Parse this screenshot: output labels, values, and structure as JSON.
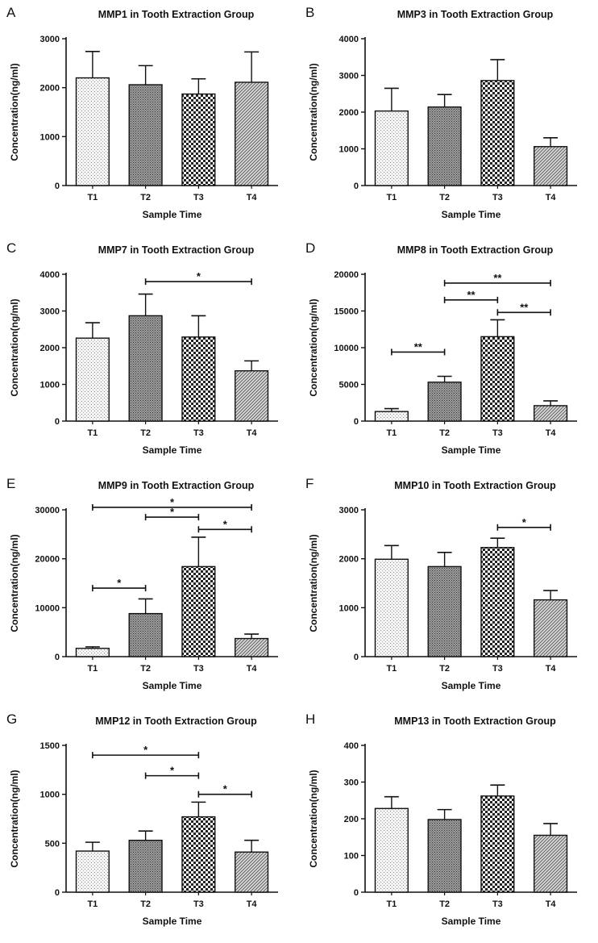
{
  "chart_data": [
    {
      "panel": "A",
      "type": "bar",
      "title": "MMP1 in Tooth Extraction Group",
      "xlabel": "Sample Time",
      "ylabel": "Concentration(ng/ml)",
      "categories": [
        "T1",
        "T2",
        "T3",
        "T4"
      ],
      "values": [
        2200,
        2060,
        1870,
        2110
      ],
      "errors": [
        540,
        390,
        310,
        620
      ],
      "ylim": [
        0,
        3000
      ],
      "yticks": [
        0,
        1000,
        2000,
        3000
      ],
      "patterns": [
        "dots",
        "dense",
        "checker",
        "diag"
      ],
      "significance": []
    },
    {
      "panel": "B",
      "type": "bar",
      "title": "MMP3 in Tooth Extraction Group",
      "xlabel": "Sample Time",
      "ylabel": "Concentration(ng/ml)",
      "categories": [
        "T1",
        "T2",
        "T3",
        "T4"
      ],
      "values": [
        2030,
        2140,
        2860,
        1060
      ],
      "errors": [
        620,
        340,
        570,
        240
      ],
      "ylim": [
        0,
        4000
      ],
      "yticks": [
        0,
        1000,
        2000,
        3000,
        4000
      ],
      "patterns": [
        "dots",
        "dense",
        "checker",
        "diag"
      ],
      "significance": []
    },
    {
      "panel": "C",
      "type": "bar",
      "title": "MMP7 in Tooth Extraction Group",
      "xlabel": "Sample Time",
      "ylabel": "Concentration(ng/ml)",
      "categories": [
        "T1",
        "T2",
        "T3",
        "T4"
      ],
      "values": [
        2260,
        2870,
        2290,
        1370
      ],
      "errors": [
        420,
        590,
        580,
        270
      ],
      "ylim": [
        0,
        4000
      ],
      "yticks": [
        0,
        1000,
        2000,
        3000,
        4000
      ],
      "patterns": [
        "dots",
        "dense",
        "checker",
        "diag"
      ],
      "significance": [
        {
          "from": 1,
          "to": 3,
          "y": 3800,
          "label": "*"
        }
      ]
    },
    {
      "panel": "D",
      "type": "bar",
      "title": "MMP8 in Tooth Extraction Group",
      "xlabel": "Sample Time",
      "ylabel": "Concentration(ng/ml)",
      "categories": [
        "T1",
        "T2",
        "T3",
        "T4"
      ],
      "values": [
        1300,
        5300,
        11500,
        2100
      ],
      "errors": [
        400,
        800,
        2300,
        650
      ],
      "ylim": [
        0,
        20000
      ],
      "yticks": [
        0,
        5000,
        10000,
        15000,
        20000
      ],
      "patterns": [
        "dots",
        "dense",
        "checker",
        "diag"
      ],
      "significance": [
        {
          "from": 1,
          "to": 3,
          "y": 18800,
          "label": "**"
        },
        {
          "from": 1,
          "to": 2,
          "y": 16500,
          "label": "**"
        },
        {
          "from": 2,
          "to": 3,
          "y": 14800,
          "label": "**"
        },
        {
          "from": 0,
          "to": 1,
          "y": 9400,
          "label": "**"
        }
      ]
    },
    {
      "panel": "E",
      "type": "bar",
      "title": "MMP9 in Tooth Extraction Group",
      "xlabel": "Sample Time",
      "ylabel": "Concentration(ng/ml)",
      "categories": [
        "T1",
        "T2",
        "T3",
        "T4"
      ],
      "values": [
        1700,
        8800,
        18400,
        3700
      ],
      "errors": [
        300,
        3000,
        6000,
        900
      ],
      "ylim": [
        0,
        30000
      ],
      "yticks": [
        0,
        10000,
        20000,
        30000
      ],
      "patterns": [
        "dots",
        "dense",
        "checker",
        "diag"
      ],
      "significance": [
        {
          "from": 0,
          "to": 3,
          "y": 30500,
          "label": "*"
        },
        {
          "from": 1,
          "to": 2,
          "y": 28500,
          "label": "*"
        },
        {
          "from": 2,
          "to": 3,
          "y": 26000,
          "label": "*"
        },
        {
          "from": 0,
          "to": 1,
          "y": 14000,
          "label": "*"
        }
      ]
    },
    {
      "panel": "F",
      "type": "bar",
      "title": "MMP10 in Tooth Extraction Group",
      "xlabel": "Sample Time",
      "ylabel": "Concentration(ng/ml)",
      "categories": [
        "T1",
        "T2",
        "T3",
        "T4"
      ],
      "values": [
        1990,
        1840,
        2230,
        1160
      ],
      "errors": [
        280,
        290,
        190,
        190
      ],
      "ylim": [
        0,
        3000
      ],
      "yticks": [
        0,
        1000,
        2000,
        3000
      ],
      "patterns": [
        "dots",
        "dense",
        "checker",
        "diag"
      ],
      "significance": [
        {
          "from": 2,
          "to": 3,
          "y": 2640,
          "label": "*"
        }
      ]
    },
    {
      "panel": "G",
      "type": "bar",
      "title": "MMP12 in Tooth Extraction Group",
      "xlabel": "Sample Time",
      "ylabel": "Concentration(ng/ml)",
      "categories": [
        "T1",
        "T2",
        "T3",
        "T4"
      ],
      "values": [
        420,
        530,
        770,
        410
      ],
      "errors": [
        90,
        95,
        150,
        120
      ],
      "ylim": [
        0,
        1500
      ],
      "yticks": [
        0,
        500,
        1000,
        1500
      ],
      "patterns": [
        "dots",
        "dense",
        "checker",
        "diag"
      ],
      "significance": [
        {
          "from": 0,
          "to": 2,
          "y": 1400,
          "label": "*"
        },
        {
          "from": 1,
          "to": 2,
          "y": 1190,
          "label": "*"
        },
        {
          "from": 2,
          "to": 3,
          "y": 1000,
          "label": "*"
        }
      ]
    },
    {
      "panel": "H",
      "type": "bar",
      "title": "MMP13 in Tooth Extraction Group",
      "xlabel": "Sample Time",
      "ylabel": "Concentration(ng/ml)",
      "categories": [
        "T1",
        "T2",
        "T3",
        "T4"
      ],
      "values": [
        228,
        198,
        262,
        155
      ],
      "errors": [
        32,
        27,
        30,
        32
      ],
      "ylim": [
        0,
        400
      ],
      "yticks": [
        0,
        100,
        200,
        300,
        400
      ],
      "patterns": [
        "dots",
        "dense",
        "checker",
        "diag"
      ],
      "significance": []
    }
  ]
}
